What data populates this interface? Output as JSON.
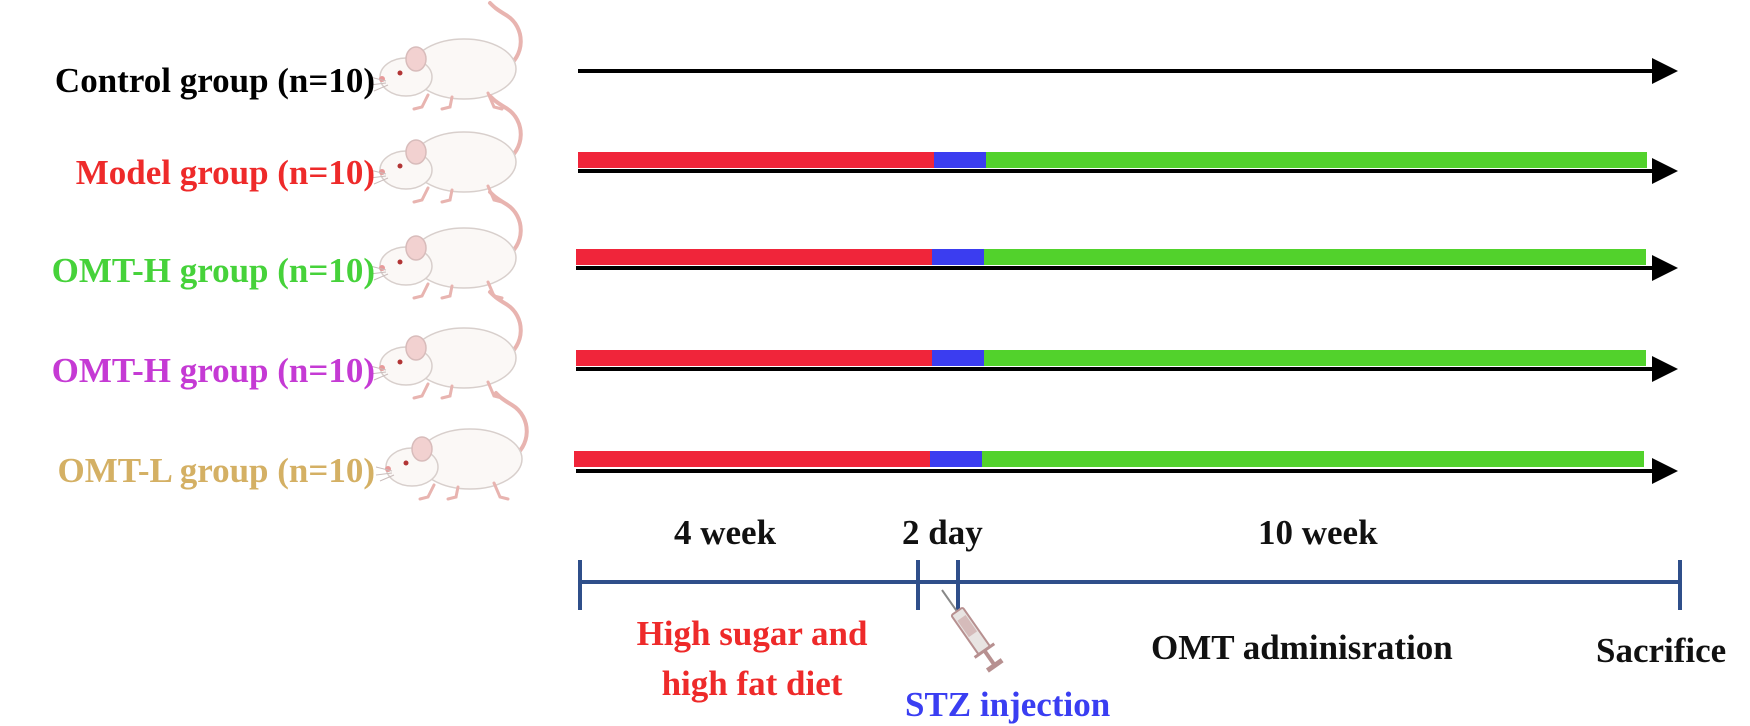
{
  "groups": [
    {
      "label": "Control group (n=10)",
      "color": "#000000",
      "has_treatment": false
    },
    {
      "label": "Model group (n=10)",
      "color": "#ee2a2a",
      "has_treatment": true
    },
    {
      "label": "OMT-H group (n=10)",
      "color": "#46d23a",
      "has_treatment": true
    },
    {
      "label": "OMT-H group (n=10)",
      "color": "#c53ad4",
      "has_treatment": true
    },
    {
      "label": "OMT-L group (n=10)",
      "color": "#d4b064",
      "has_treatment": true
    }
  ],
  "durations": [
    "4 week",
    "2 day",
    "10 week"
  ],
  "phases": {
    "diet": {
      "label": "High sugar and high fat diet",
      "color": "#ee2a2a"
    },
    "stz": {
      "label": "STZ injection",
      "color": "#3a3ef2"
    },
    "omt": {
      "label": "OMT adminisration",
      "color": "#111111"
    },
    "sacrifice": {
      "label": "Sacrifice",
      "color": "#111111"
    }
  },
  "colors": {
    "diet_bar": "#f0253a",
    "stz_bar": "#3b3df0",
    "omt_bar": "#52d22c",
    "timeline": "#2f4f8a",
    "arrow": "#000000"
  },
  "icons": {
    "animal": "rat-icon",
    "injection": "syringe-icon"
  }
}
